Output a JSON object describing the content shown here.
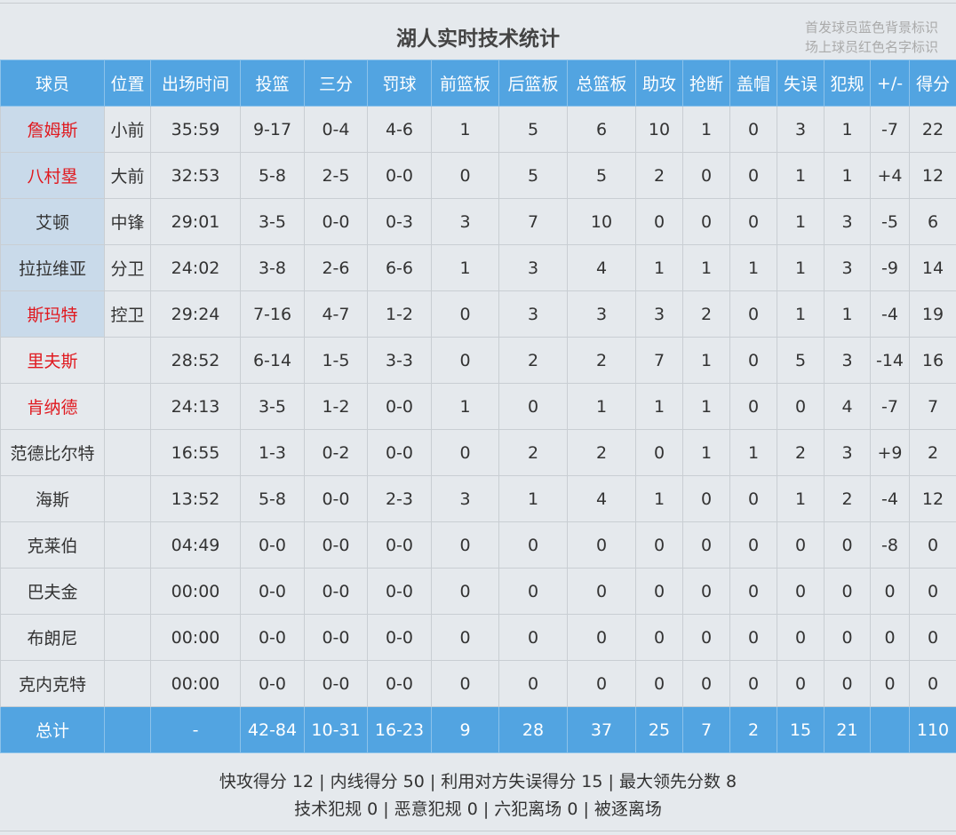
{
  "title": "湖人实时技术统计",
  "legend": [
    "首发球员蓝色背景标识",
    "场上球员红色名字标识"
  ],
  "colors": {
    "header": "#52a4e1",
    "starter_bg": "#c9daea",
    "on_court_name": "#e0191f"
  },
  "headers": [
    "球员",
    "位置",
    "出场时间",
    "投篮",
    "三分",
    "罚球",
    "前篮板",
    "后篮板",
    "总篮板",
    "助攻",
    "抢断",
    "盖帽",
    "失误",
    "犯规",
    "+/-",
    "得分"
  ],
  "rows": [
    {
      "starter": true,
      "on_court": true,
      "cells": [
        "詹姆斯",
        "小前",
        "35:59",
        "9-17",
        "0-4",
        "4-6",
        "1",
        "5",
        "6",
        "10",
        "1",
        "0",
        "3",
        "1",
        "-7",
        "22"
      ]
    },
    {
      "starter": true,
      "on_court": true,
      "cells": [
        "八村塁",
        "大前",
        "32:53",
        "5-8",
        "2-5",
        "0-0",
        "0",
        "5",
        "5",
        "2",
        "0",
        "0",
        "1",
        "1",
        "+4",
        "12"
      ]
    },
    {
      "starter": true,
      "on_court": false,
      "cells": [
        "艾顿",
        "中锋",
        "29:01",
        "3-5",
        "0-0",
        "0-3",
        "3",
        "7",
        "10",
        "0",
        "0",
        "0",
        "1",
        "3",
        "-5",
        "6"
      ]
    },
    {
      "starter": true,
      "on_court": false,
      "cells": [
        "拉拉维亚",
        "分卫",
        "24:02",
        "3-8",
        "2-6",
        "6-6",
        "1",
        "3",
        "4",
        "1",
        "1",
        "1",
        "1",
        "3",
        "-9",
        "14"
      ]
    },
    {
      "starter": true,
      "on_court": true,
      "cells": [
        "斯玛特",
        "控卫",
        "29:24",
        "7-16",
        "4-7",
        "1-2",
        "0",
        "3",
        "3",
        "3",
        "2",
        "0",
        "1",
        "1",
        "-4",
        "19"
      ]
    },
    {
      "starter": false,
      "on_court": true,
      "cells": [
        "里夫斯",
        "",
        "28:52",
        "6-14",
        "1-5",
        "3-3",
        "0",
        "2",
        "2",
        "7",
        "1",
        "0",
        "5",
        "3",
        "-14",
        "16"
      ]
    },
    {
      "starter": false,
      "on_court": true,
      "cells": [
        "肯纳德",
        "",
        "24:13",
        "3-5",
        "1-2",
        "0-0",
        "1",
        "0",
        "1",
        "1",
        "1",
        "0",
        "0",
        "4",
        "-7",
        "7"
      ]
    },
    {
      "starter": false,
      "on_court": false,
      "cells": [
        "范德比尔特",
        "",
        "16:55",
        "1-3",
        "0-2",
        "0-0",
        "0",
        "2",
        "2",
        "0",
        "1",
        "1",
        "2",
        "3",
        "+9",
        "2"
      ]
    },
    {
      "starter": false,
      "on_court": false,
      "cells": [
        "海斯",
        "",
        "13:52",
        "5-8",
        "0-0",
        "2-3",
        "3",
        "1",
        "4",
        "1",
        "0",
        "0",
        "1",
        "2",
        "-4",
        "12"
      ]
    },
    {
      "starter": false,
      "on_court": false,
      "cells": [
        "克莱伯",
        "",
        "04:49",
        "0-0",
        "0-0",
        "0-0",
        "0",
        "0",
        "0",
        "0",
        "0",
        "0",
        "0",
        "0",
        "-8",
        "0"
      ]
    },
    {
      "starter": false,
      "on_court": false,
      "cells": [
        "巴夫金",
        "",
        "00:00",
        "0-0",
        "0-0",
        "0-0",
        "0",
        "0",
        "0",
        "0",
        "0",
        "0",
        "0",
        "0",
        "0",
        "0"
      ]
    },
    {
      "starter": false,
      "on_court": false,
      "cells": [
        "布朗尼",
        "",
        "00:00",
        "0-0",
        "0-0",
        "0-0",
        "0",
        "0",
        "0",
        "0",
        "0",
        "0",
        "0",
        "0",
        "0",
        "0"
      ]
    },
    {
      "starter": false,
      "on_court": false,
      "cells": [
        "克内克特",
        "",
        "00:00",
        "0-0",
        "0-0",
        "0-0",
        "0",
        "0",
        "0",
        "0",
        "0",
        "0",
        "0",
        "0",
        "0",
        "0"
      ]
    }
  ],
  "totals": [
    "总计",
    "",
    "-",
    "42-84",
    "10-31",
    "16-23",
    "9",
    "28",
    "37",
    "25",
    "7",
    "2",
    "15",
    "21",
    "",
    "110"
  ],
  "footer": [
    "快攻得分 12 | 内线得分 50 | 利用对方失误得分 15 | 最大领先分数 8",
    "技术犯规 0 | 恶意犯规 0 | 六犯离场 0 | 被逐离场"
  ]
}
